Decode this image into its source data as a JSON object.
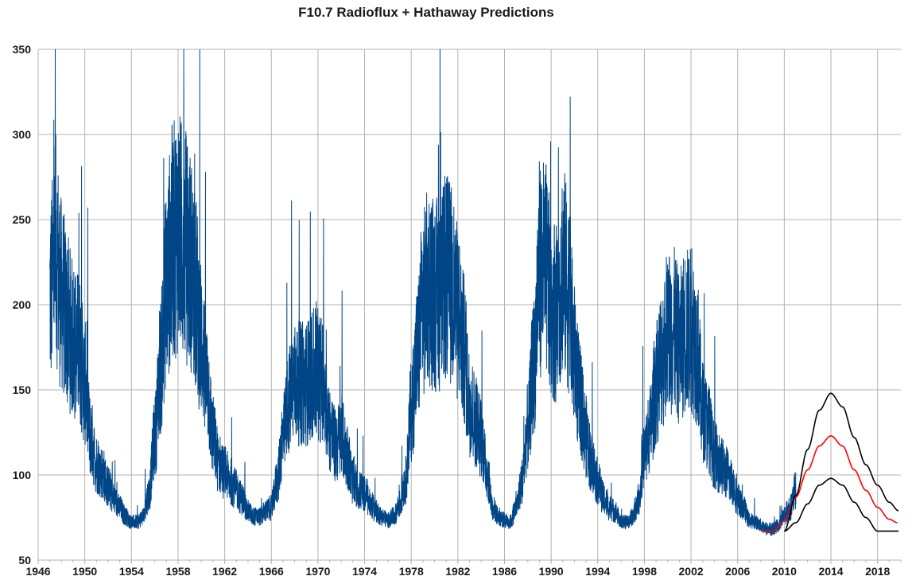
{
  "chart_data": {
    "type": "line",
    "title": "F10.7 Radioflux + Hathaway  Predictions",
    "xlabel": "",
    "ylabel": "",
    "xlim": [
      1946,
      2020
    ],
    "ylim": [
      50,
      350
    ],
    "x_ticks": [
      "1946",
      "1950",
      "1954",
      "1958",
      "1962",
      "1966",
      "1970",
      "1974",
      "1978",
      "1982",
      "1986",
      "1990",
      "1994",
      "1998",
      "2002",
      "2006",
      "2010",
      "2014",
      "2018"
    ],
    "y_ticks": [
      "50",
      "100",
      "150",
      "200",
      "250",
      "300",
      "350"
    ],
    "grid": true,
    "legend": "none",
    "series": [
      {
        "color": "#004586",
        "style": "noisy-daily",
        "points": [
          [
            1947.0,
            200
          ],
          [
            1947.5,
            225
          ],
          [
            1948.0,
            200
          ],
          [
            1948.5,
            185
          ],
          [
            1949.0,
            175
          ],
          [
            1949.5,
            170
          ],
          [
            1950.0,
            150
          ],
          [
            1950.5,
            120
          ],
          [
            1951.0,
            105
          ],
          [
            1951.5,
            100
          ],
          [
            1952.0,
            92
          ],
          [
            1952.5,
            85
          ],
          [
            1953.0,
            80
          ],
          [
            1953.5,
            75
          ],
          [
            1954.0,
            72
          ],
          [
            1954.5,
            72
          ],
          [
            1955.0,
            75
          ],
          [
            1955.5,
            88
          ],
          [
            1956.0,
            120
          ],
          [
            1956.5,
            160
          ],
          [
            1957.0,
            205
          ],
          [
            1957.5,
            230
          ],
          [
            1958.0,
            235
          ],
          [
            1958.5,
            230
          ],
          [
            1959.0,
            220
          ],
          [
            1959.5,
            200
          ],
          [
            1960.0,
            175
          ],
          [
            1960.5,
            150
          ],
          [
            1961.0,
            120
          ],
          [
            1961.5,
            105
          ],
          [
            1962.0,
            100
          ],
          [
            1962.5,
            95
          ],
          [
            1963.0,
            90
          ],
          [
            1963.5,
            85
          ],
          [
            1964.0,
            78
          ],
          [
            1964.5,
            75
          ],
          [
            1965.0,
            75
          ],
          [
            1965.5,
            78
          ],
          [
            1966.0,
            80
          ],
          [
            1966.5,
            95
          ],
          [
            1967.0,
            120
          ],
          [
            1967.5,
            140
          ],
          [
            1968.0,
            150
          ],
          [
            1968.5,
            150
          ],
          [
            1969.0,
            150
          ],
          [
            1969.5,
            155
          ],
          [
            1970.0,
            155
          ],
          [
            1970.5,
            150
          ],
          [
            1971.0,
            125
          ],
          [
            1971.5,
            115
          ],
          [
            1972.0,
            120
          ],
          [
            1972.5,
            110
          ],
          [
            1973.0,
            95
          ],
          [
            1973.5,
            90
          ],
          [
            1974.0,
            88
          ],
          [
            1974.5,
            82
          ],
          [
            1975.0,
            78
          ],
          [
            1975.5,
            75
          ],
          [
            1976.0,
            73
          ],
          [
            1976.5,
            75
          ],
          [
            1977.0,
            82
          ],
          [
            1977.5,
            95
          ],
          [
            1978.0,
            135
          ],
          [
            1978.5,
            165
          ],
          [
            1979.0,
            195
          ],
          [
            1979.5,
            205
          ],
          [
            1980.0,
            200
          ],
          [
            1980.5,
            200
          ],
          [
            1981.0,
            210
          ],
          [
            1981.5,
            205
          ],
          [
            1982.0,
            190
          ],
          [
            1982.5,
            170
          ],
          [
            1983.0,
            140
          ],
          [
            1983.5,
            130
          ],
          [
            1984.0,
            120
          ],
          [
            1984.5,
            100
          ],
          [
            1985.0,
            80
          ],
          [
            1985.5,
            75
          ],
          [
            1986.0,
            73
          ],
          [
            1986.5,
            72
          ],
          [
            1987.0,
            80
          ],
          [
            1987.5,
            95
          ],
          [
            1988.0,
            125
          ],
          [
            1988.5,
            160
          ],
          [
            1989.0,
            215
          ],
          [
            1989.5,
            215
          ],
          [
            1990.0,
            195
          ],
          [
            1990.5,
            190
          ],
          [
            1991.0,
            215
          ],
          [
            1991.5,
            200
          ],
          [
            1992.0,
            165
          ],
          [
            1992.5,
            140
          ],
          [
            1993.0,
            120
          ],
          [
            1993.5,
            105
          ],
          [
            1994.0,
            95
          ],
          [
            1994.5,
            85
          ],
          [
            1995.0,
            80
          ],
          [
            1995.5,
            78
          ],
          [
            1996.0,
            72
          ],
          [
            1996.5,
            72
          ],
          [
            1997.0,
            75
          ],
          [
            1997.5,
            85
          ],
          [
            1998.0,
            110
          ],
          [
            1998.5,
            125
          ],
          [
            1999.0,
            150
          ],
          [
            1999.5,
            165
          ],
          [
            2000.0,
            180
          ],
          [
            2000.5,
            180
          ],
          [
            2001.0,
            170
          ],
          [
            2001.5,
            180
          ],
          [
            2002.0,
            180
          ],
          [
            2002.5,
            170
          ],
          [
            2003.0,
            135
          ],
          [
            2003.5,
            125
          ],
          [
            2004.0,
            110
          ],
          [
            2004.5,
            105
          ],
          [
            2005.0,
            100
          ],
          [
            2005.5,
            95
          ],
          [
            2006.0,
            85
          ],
          [
            2006.5,
            80
          ],
          [
            2007.0,
            73
          ],
          [
            2007.5,
            72
          ],
          [
            2008.0,
            70
          ],
          [
            2008.5,
            68
          ],
          [
            2009.0,
            68
          ],
          [
            2009.5,
            70
          ],
          [
            2010.0,
            76
          ],
          [
            2010.5,
            80
          ],
          [
            2011.0,
            90
          ]
        ]
      },
      {
        "color": "#ff0000",
        "style": "smooth",
        "points": [
          [
            2008.0,
            67
          ],
          [
            2009.0,
            67
          ],
          [
            2010.0,
            73
          ],
          [
            2011.0,
            87
          ],
          [
            2012.0,
            103
          ],
          [
            2013.0,
            117
          ],
          [
            2014.0,
            123
          ],
          [
            2015.0,
            117
          ],
          [
            2016.0,
            103
          ],
          [
            2017.0,
            91
          ],
          [
            2018.0,
            81
          ],
          [
            2019.0,
            74
          ],
          [
            2019.7,
            72
          ]
        ]
      },
      {
        "color": "#000000",
        "style": "smooth",
        "points": [
          [
            2010.0,
            67
          ],
          [
            2011.0,
            88
          ],
          [
            2012.0,
            115
          ],
          [
            2013.0,
            138
          ],
          [
            2014.0,
            148
          ],
          [
            2015.0,
            140
          ],
          [
            2016.0,
            122
          ],
          [
            2017.0,
            106
          ],
          [
            2018.0,
            94
          ],
          [
            2019.0,
            84
          ],
          [
            2019.8,
            79
          ]
        ]
      },
      {
        "color": "#000000",
        "style": "smooth",
        "points": [
          [
            2010.0,
            67
          ],
          [
            2011.0,
            72
          ],
          [
            2012.0,
            83
          ],
          [
            2013.0,
            94
          ],
          [
            2014.0,
            98
          ],
          [
            2015.0,
            94
          ],
          [
            2016.0,
            84
          ],
          [
            2017.0,
            75
          ],
          [
            2018.0,
            67
          ],
          [
            2019.0,
            67
          ],
          [
            2019.8,
            67
          ]
        ]
      }
    ]
  }
}
